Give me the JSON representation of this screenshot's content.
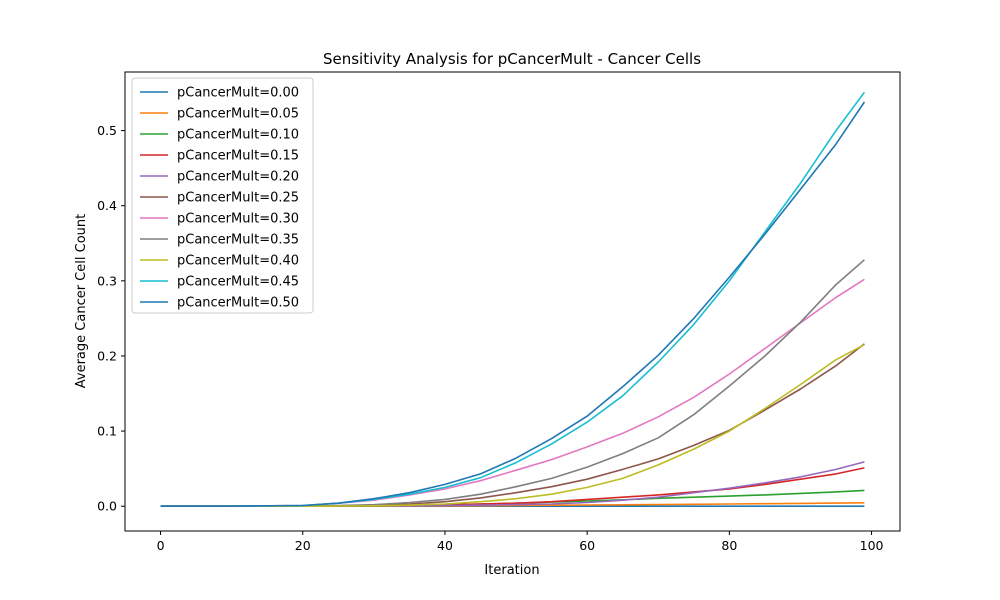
{
  "chart_data": {
    "type": "line",
    "title": "Sensitivity Analysis for pCancerMult - Cancer Cells",
    "xlabel": "Iteration",
    "ylabel": "Average Cancer Cell Count",
    "xlim": [
      -5,
      104
    ],
    "ylim": [
      -0.033,
      0.578
    ],
    "xticks": [
      0,
      20,
      40,
      60,
      80,
      100
    ],
    "yticks": [
      0.0,
      0.1,
      0.2,
      0.3,
      0.4,
      0.5
    ],
    "xtick_labels": [
      "0",
      "20",
      "40",
      "60",
      "80",
      "100"
    ],
    "ytick_labels": [
      "0.0",
      "0.1",
      "0.2",
      "0.3",
      "0.4",
      "0.5"
    ],
    "grid": false,
    "legend_position": "top-left",
    "x": [
      0,
      10,
      20,
      25,
      30,
      35,
      40,
      45,
      50,
      55,
      60,
      65,
      70,
      75,
      80,
      85,
      90,
      95,
      99
    ],
    "series": [
      {
        "name": "pCancerMult=0.00",
        "color": "#1f77b4",
        "values": [
          0,
          0,
          0,
          0,
          0,
          0,
          0,
          0,
          0,
          0,
          0,
          0,
          0,
          0,
          0,
          0,
          0,
          0,
          0
        ]
      },
      {
        "name": "pCancerMult=0.05",
        "color": "#ff7f0e",
        "values": [
          0,
          0,
          0,
          0,
          0,
          0.0002,
          0.0004,
          0.0007,
          0.001,
          0.0013,
          0.0016,
          0.0019,
          0.0022,
          0.0026,
          0.003,
          0.0034,
          0.0038,
          0.0042,
          0.0046
        ]
      },
      {
        "name": "pCancerMult=0.10",
        "color": "#2ca02c",
        "values": [
          0,
          0,
          0,
          0.0002,
          0.0005,
          0.001,
          0.0018,
          0.0028,
          0.004,
          0.0055,
          0.007,
          0.0085,
          0.0105,
          0.012,
          0.0135,
          0.015,
          0.017,
          0.019,
          0.021
        ]
      },
      {
        "name": "pCancerMult=0.15",
        "color": "#d62728",
        "values": [
          0,
          0,
          0,
          0.0002,
          0.0006,
          0.0012,
          0.002,
          0.003,
          0.004,
          0.006,
          0.009,
          0.012,
          0.015,
          0.019,
          0.023,
          0.029,
          0.036,
          0.043,
          0.051
        ]
      },
      {
        "name": "pCancerMult=0.20",
        "color": "#9467bd",
        "values": [
          0,
          0,
          0,
          0.0001,
          0.0003,
          0.0006,
          0.001,
          0.0015,
          0.0022,
          0.003,
          0.005,
          0.008,
          0.012,
          0.018,
          0.024,
          0.031,
          0.039,
          0.049,
          0.059
        ]
      },
      {
        "name": "pCancerMult=0.25",
        "color": "#8c564b",
        "values": [
          0,
          0,
          0,
          0.0005,
          0.0015,
          0.003,
          0.006,
          0.011,
          0.018,
          0.026,
          0.036,
          0.049,
          0.063,
          0.081,
          0.101,
          0.128,
          0.156,
          0.187,
          0.216
        ]
      },
      {
        "name": "pCancerMult=0.30",
        "color": "#e377c2",
        "values": [
          0,
          0,
          0.001,
          0.004,
          0.008,
          0.015,
          0.023,
          0.034,
          0.048,
          0.062,
          0.079,
          0.097,
          0.119,
          0.145,
          0.176,
          0.21,
          0.244,
          0.278,
          0.302
        ]
      },
      {
        "name": "pCancerMult=0.35",
        "color": "#7f7f7f",
        "values": [
          0,
          0,
          0,
          0.0008,
          0.002,
          0.005,
          0.009,
          0.016,
          0.026,
          0.037,
          0.052,
          0.07,
          0.091,
          0.122,
          0.16,
          0.2,
          0.245,
          0.295,
          0.328
        ]
      },
      {
        "name": "pCancerMult=0.40",
        "color": "#bcbd22",
        "values": [
          0,
          0,
          0,
          0.0002,
          0.0006,
          0.0015,
          0.003,
          0.006,
          0.01,
          0.016,
          0.025,
          0.037,
          0.055,
          0.076,
          0.1,
          0.13,
          0.162,
          0.195,
          0.215
        ]
      },
      {
        "name": "pCancerMult=0.45",
        "color": "#17becf",
        "values": [
          0,
          0,
          0.001,
          0.004,
          0.009,
          0.016,
          0.025,
          0.038,
          0.058,
          0.083,
          0.112,
          0.147,
          0.192,
          0.242,
          0.3,
          0.365,
          0.43,
          0.5,
          0.551
        ]
      },
      {
        "name": "pCancerMult=0.50",
        "color": "#1f77b4",
        "values": [
          0,
          0,
          0.001,
          0.004,
          0.01,
          0.018,
          0.029,
          0.043,
          0.064,
          0.09,
          0.12,
          0.159,
          0.201,
          0.25,
          0.305,
          0.362,
          0.422,
          0.482,
          0.538
        ]
      }
    ]
  }
}
